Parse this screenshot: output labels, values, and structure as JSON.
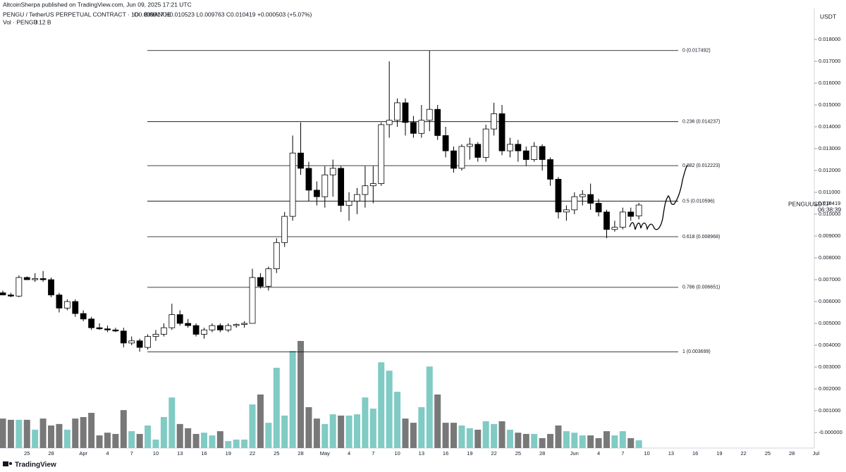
{
  "header": {
    "published": "AltcoinSherpa published on TradingView.com, Jun 09, 2025 17:21 UTC",
    "symbol": "PENGU / TetherUS PERPETUAL CONTRACT · 1D · BINANCE",
    "quote": "O0.009917 H0.010523 L0.009763 C0.010419 +0.000503 (+5.07%)",
    "currency": "USDT",
    "symbol_tag": "PENGUUSDT.P",
    "countdown": "06:38:39",
    "brand": "TradingView"
  },
  "chart_data": {
    "type": "candlestick",
    "categories": [
      null,
      null,
      null,
      "25",
      null,
      null,
      "28",
      null,
      null,
      null,
      "Apr",
      null,
      null,
      "4",
      null,
      null,
      "7",
      null,
      null,
      "10",
      null,
      null,
      "13",
      null,
      null,
      "16",
      null,
      null,
      "19",
      null,
      null,
      "22",
      null,
      null,
      "25",
      null,
      null,
      "28",
      null,
      null,
      "May",
      null,
      null,
      "4",
      null,
      null,
      "7",
      null,
      null,
      "10",
      null,
      null,
      "13",
      null,
      null,
      "16",
      null,
      null,
      "19",
      null,
      null,
      "22",
      null,
      null,
      "25",
      null,
      null,
      "28",
      null,
      null,
      null,
      "Jun",
      null,
      null,
      "4",
      null,
      null,
      "7",
      null,
      null,
      "10",
      null,
      null,
      "13",
      null,
      null,
      "16",
      null,
      null,
      "19",
      null,
      null,
      "22",
      null,
      null,
      "25",
      null,
      null,
      "28",
      null,
      null,
      "Jul"
    ],
    "open": [
      0.0064,
      0.0063,
      0.00625,
      0.0071,
      0.007,
      0.00705,
      0.007,
      0.0063,
      0.0057,
      0.006,
      0.00545,
      0.0052,
      0.0048,
      0.00475,
      0.0047,
      0.00465,
      0.0041,
      0.0042,
      0.0039,
      0.0044,
      0.0045,
      0.0048,
      0.0054,
      0.005,
      0.0049,
      0.0045,
      0.0047,
      0.0049,
      0.0047,
      0.0049,
      0.00495,
      0.005,
      0.0071,
      0.0067,
      0.0075,
      0.0087,
      0.0099,
      0.0128,
      0.0121,
      0.0111,
      0.0108,
      0.0118,
      0.0121,
      0.0104,
      0.0106,
      0.0109,
      0.0113,
      0.0114,
      0.0141,
      0.0143,
      0.0151,
      0.0142,
      0.0137,
      0.0143,
      0.0148,
      0.0136,
      0.0129,
      0.0121,
      0.0131,
      0.0132,
      0.0126,
      0.0139,
      0.0146,
      0.0129,
      0.0132,
      0.0129,
      0.0125,
      0.0131,
      0.0125,
      0.0116,
      0.0101,
      0.0102,
      0.0108,
      0.0109,
      0.0105,
      0.0101,
      0.0093,
      0.0094,
      0.0101,
      0.009917,
      null,
      null,
      null,
      null,
      null,
      null,
      null,
      null,
      null,
      null,
      null,
      null,
      null,
      null,
      null,
      null,
      null,
      null,
      null,
      null,
      null,
      null
    ],
    "high": [
      0.0065,
      0.0064,
      0.0072,
      0.00715,
      0.0073,
      0.0074,
      0.0071,
      0.0064,
      0.0061,
      0.0061,
      0.0056,
      0.0053,
      0.005,
      0.0049,
      0.0048,
      0.0048,
      0.0044,
      0.0043,
      0.0045,
      0.0047,
      0.005,
      0.0059,
      0.0056,
      0.0052,
      0.005,
      0.0048,
      0.005,
      0.005,
      0.005,
      0.005,
      0.0051,
      0.0075,
      0.0073,
      0.0076,
      0.0089,
      0.0101,
      0.0136,
      0.0142,
      0.0124,
      0.0115,
      0.0122,
      0.0125,
      0.0122,
      0.011,
      0.0112,
      0.0122,
      0.0122,
      0.0142,
      0.017,
      0.0153,
      0.0153,
      0.0145,
      0.015,
      0.0175,
      0.015,
      0.014,
      0.0131,
      0.0132,
      0.0135,
      0.0133,
      0.0141,
      0.0151,
      0.015,
      0.0135,
      0.0134,
      0.0131,
      0.0133,
      0.0132,
      0.0126,
      0.0117,
      0.0104,
      0.011,
      0.0111,
      0.0114,
      0.0107,
      0.0102,
      0.0097,
      0.0103,
      0.0103,
      0.010523,
      null,
      null,
      null,
      null,
      null,
      null,
      null,
      null,
      null,
      null,
      null,
      null,
      null,
      null,
      null,
      null,
      null,
      null,
      null,
      null,
      null,
      null
    ],
    "low": [
      0.0063,
      0.0062,
      0.0062,
      0.007,
      0.0069,
      0.0069,
      0.0062,
      0.0055,
      0.0056,
      0.0053,
      0.0051,
      0.0047,
      0.0047,
      0.0046,
      0.0046,
      0.0039,
      0.004,
      0.0037,
      0.0038,
      0.0042,
      0.0044,
      0.0047,
      0.0049,
      0.0048,
      0.0044,
      0.0043,
      0.0046,
      0.0046,
      0.0046,
      0.0048,
      0.0048,
      0.005,
      0.0066,
      0.0065,
      0.0073,
      0.0085,
      0.0097,
      0.0118,
      0.0106,
      0.0104,
      0.0103,
      0.0108,
      0.0101,
      0.0097,
      0.01,
      0.0103,
      0.0105,
      0.0113,
      0.0135,
      0.014,
      0.0136,
      0.0135,
      0.0135,
      0.0138,
      0.0134,
      0.0126,
      0.0119,
      0.012,
      0.0125,
      0.0124,
      0.0124,
      0.0136,
      0.0127,
      0.0126,
      0.0124,
      0.0122,
      0.0124,
      0.012,
      0.0113,
      0.0098,
      0.0097,
      0.01,
      0.0104,
      0.0102,
      0.0099,
      0.0089,
      0.0092,
      0.0093,
      0.0097,
      0.009763,
      null,
      null,
      null,
      null,
      null,
      null,
      null,
      null,
      null,
      null,
      null,
      null,
      null,
      null,
      null,
      null,
      null,
      null,
      null,
      null,
      null,
      null
    ],
    "close": [
      0.0063,
      0.00625,
      0.0071,
      0.007,
      0.00705,
      0.007,
      0.0063,
      0.0057,
      0.006,
      0.00545,
      0.0052,
      0.0048,
      0.00475,
      0.0047,
      0.00465,
      0.0041,
      0.0042,
      0.0039,
      0.0044,
      0.0045,
      0.0048,
      0.0054,
      0.005,
      0.0049,
      0.0045,
      0.0047,
      0.0049,
      0.0047,
      0.0049,
      0.00495,
      0.005,
      0.0071,
      0.0067,
      0.0075,
      0.0087,
      0.0099,
      0.0128,
      0.0121,
      0.0111,
      0.0108,
      0.0118,
      0.0121,
      0.0104,
      0.0106,
      0.0109,
      0.0113,
      0.0114,
      0.0141,
      0.0143,
      0.0151,
      0.0142,
      0.0137,
      0.0143,
      0.0148,
      0.0136,
      0.0129,
      0.0121,
      0.0131,
      0.0132,
      0.0126,
      0.0139,
      0.0146,
      0.0129,
      0.0132,
      0.0129,
      0.0125,
      0.0131,
      0.0125,
      0.0116,
      0.0101,
      0.0102,
      0.0108,
      0.0109,
      0.0105,
      0.0101,
      0.0093,
      0.0094,
      0.0101,
      0.0099,
      0.010419,
      null,
      null,
      null,
      null,
      null,
      null,
      null,
      null,
      null,
      null,
      null,
      null,
      null,
      null,
      null,
      null,
      null,
      null,
      null,
      null,
      null,
      null
    ],
    "volume": {
      "name": "Vol · PENGU",
      "values": [
        11.9,
        11.4,
        11.4,
        11.4,
        7.4,
        11.9,
        9.1,
        9.7,
        7.4,
        11.9,
        12.5,
        14.2,
        5.1,
        6.2,
        5.7,
        15.3,
        6.8,
        5.7,
        9.1,
        3.4,
        12.5,
        20.4,
        9.7,
        8.0,
        5.7,
        6.2,
        5.1,
        6.8,
        2.8,
        3.4,
        3.4,
        17.6,
        21.6,
        10.2,
        32.4,
        13.1,
        39.2,
        43.2,
        16.5,
        11.9,
        9.7,
        13.6,
        13.1,
        13.1,
        13.6,
        20.4,
        15.9,
        34.6,
        31.2,
        22.7,
        11.9,
        10.2,
        16.5,
        32.9,
        21.6,
        10.2,
        10.2,
        9.1,
        8.0,
        7.4,
        10.8,
        9.7,
        10.8,
        7.4,
        6.2,
        5.7,
        5.7,
        4.0,
        5.7,
        9.1,
        6.8,
        6.2,
        5.1,
        5.1,
        4.0,
        6.8,
        5.1,
        6.8,
        4.0,
        3.12,
        null,
        null,
        null,
        null,
        null,
        null,
        null,
        null,
        null,
        null,
        null,
        null,
        null,
        null,
        null,
        null,
        null,
        null,
        null,
        null,
        null,
        null
      ],
      "value_labels": [
        null,
        null,
        null,
        null,
        null,
        null,
        null,
        null,
        null,
        null,
        null,
        null,
        null,
        null,
        null,
        null,
        null,
        null,
        null,
        null,
        null,
        null,
        null,
        null,
        null,
        null,
        null,
        null,
        null,
        null,
        null,
        null,
        null,
        null,
        null,
        null,
        null,
        null,
        null,
        null,
        null,
        null,
        null,
        null,
        null,
        null,
        null,
        null,
        null,
        null,
        null,
        null,
        null,
        null,
        null,
        null,
        null,
        null,
        null,
        null,
        null,
        null,
        null,
        null,
        null,
        null,
        null,
        null,
        null,
        null,
        null,
        null,
        null,
        null,
        null,
        null,
        null,
        null,
        null,
        "3.12 B",
        null,
        null,
        null,
        null,
        null,
        null,
        null,
        null,
        null,
        null,
        null,
        null,
        null,
        null,
        null,
        null,
        null,
        null,
        null,
        null,
        null,
        null
      ],
      "up_color": "#80cbc4",
      "down_color": "#787878"
    },
    "up_color": "#ffffff",
    "down_color": "#000000",
    "fib_levels": [
      {
        "value": 0.017492,
        "label": "0 (0.017492)"
      },
      {
        "value": 0.014237,
        "label": "0.236 (0.014237)"
      },
      {
        "value": 0.012223,
        "label": "0.382 (0.012223)"
      },
      {
        "value": 0.010596,
        "label": "0.5 (0.010596)"
      },
      {
        "value": 0.008968,
        "label": "0.618 (0.008968)"
      },
      {
        "value": 0.006651,
        "label": "0.786 (0.006651)"
      },
      {
        "value": 0.003699,
        "label": "1 (0.003699)"
      }
    ],
    "ylim": [
      -0.00058,
      0.01942
    ],
    "yticks": [
      {
        "value": 0.018,
        "label": "0.018000"
      },
      {
        "value": 0.017,
        "label": "0.017000"
      },
      {
        "value": 0.016,
        "label": "0.016000"
      },
      {
        "value": 0.015,
        "label": "0.015000"
      },
      {
        "value": 0.014,
        "label": "0.014000"
      },
      {
        "value": 0.013,
        "label": "0.013000"
      },
      {
        "value": 0.012,
        "label": "0.012000"
      },
      {
        "value": 0.011,
        "label": "0.011000"
      },
      {
        "value": 0.01,
        "label": "0.010000"
      },
      {
        "value": 0.009,
        "label": "0.009000"
      },
      {
        "value": 0.008,
        "label": "0.008000"
      },
      {
        "value": 0.007,
        "label": "0.007000"
      },
      {
        "value": 0.006,
        "label": "0.006000"
      },
      {
        "value": 0.005,
        "label": "0.005000"
      },
      {
        "value": 0.004,
        "label": "0.004000"
      },
      {
        "value": 0.003,
        "label": "0.003000"
      },
      {
        "value": 0.002,
        "label": "0.002000"
      },
      {
        "value": 0.001,
        "label": "0.001000"
      },
      {
        "value": 0,
        "label": "-0.000000"
      }
    ]
  }
}
